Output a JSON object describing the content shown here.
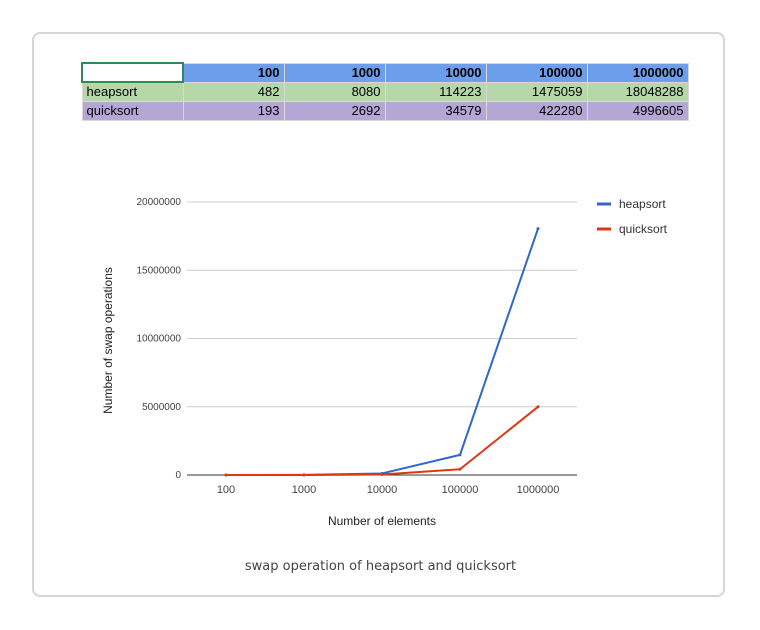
{
  "table": {
    "header": [
      "",
      "100",
      "1000",
      "10000",
      "100000",
      "1000000"
    ],
    "rows": [
      {
        "name": "heapsort",
        "values": [
          "482",
          "8080",
          "114223",
          "1475059",
          "18048288"
        ]
      },
      {
        "name": "quicksort",
        "values": [
          "193",
          "2692",
          "34579",
          "422280",
          "4996605"
        ]
      }
    ]
  },
  "caption": "swap operation of heapsort and quicksort",
  "chart_data": {
    "type": "line",
    "categories": [
      "100",
      "1000",
      "10000",
      "100000",
      "1000000"
    ],
    "series": [
      {
        "name": "heapsort",
        "color": "#3366cc",
        "values": [
          482,
          8080,
          114223,
          1475059,
          18048288
        ]
      },
      {
        "name": "quicksort",
        "color": "#dc3912",
        "values": [
          193,
          2692,
          34579,
          422280,
          4996605
        ]
      }
    ],
    "xlabel": "Number of elements",
    "ylabel": "Number of swap operations",
    "ylim": [
      0,
      20000000
    ],
    "yticks": [
      "0",
      "5000000",
      "10000000",
      "15000000",
      "20000000"
    ],
    "grid": true,
    "legend": "right"
  }
}
